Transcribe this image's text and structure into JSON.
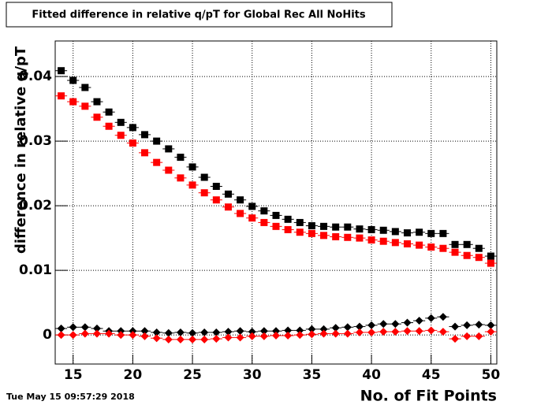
{
  "chart_data": {
    "type": "scatter",
    "title": "Fitted difference in relative q/pT  for Global Rec All NoHits",
    "x_label": "No. of Fit Points",
    "y_label": "difference in relative q/pT",
    "timestamp": "Tue May 15 09:57:29 2018",
    "x": [
      14,
      15,
      16,
      17,
      18,
      19,
      20,
      21,
      22,
      23,
      24,
      25,
      26,
      27,
      28,
      29,
      30,
      31,
      32,
      33,
      34,
      35,
      36,
      37,
      38,
      39,
      40,
      41,
      42,
      43,
      44,
      45,
      46,
      47,
      48,
      49,
      50
    ],
    "series": [
      {
        "color": "#000000",
        "marker": "square",
        "values": [
          0.0409,
          0.0394,
          0.0383,
          0.0361,
          0.0345,
          0.0329,
          0.0321,
          0.031,
          0.03,
          0.0288,
          0.0275,
          0.026,
          0.0244,
          0.023,
          0.0218,
          0.0209,
          0.0199,
          0.0192,
          0.0185,
          0.0179,
          0.0174,
          0.0169,
          0.0168,
          0.0167,
          0.0167,
          0.0164,
          0.0163,
          0.0162,
          0.016,
          0.0158,
          0.0159,
          0.0157,
          0.0157,
          0.014,
          0.014,
          0.0134,
          0.0122
        ]
      },
      {
        "color": "#ff0000",
        "marker": "square",
        "values": [
          0.037,
          0.0361,
          0.0354,
          0.0337,
          0.0323,
          0.0309,
          0.0297,
          0.0282,
          0.0267,
          0.0255,
          0.0243,
          0.0232,
          0.022,
          0.0209,
          0.0198,
          0.0188,
          0.0181,
          0.0174,
          0.0168,
          0.0163,
          0.0159,
          0.0157,
          0.0154,
          0.0152,
          0.0151,
          0.015,
          0.0147,
          0.0145,
          0.0143,
          0.0141,
          0.0139,
          0.0136,
          0.0134,
          0.0128,
          0.0123,
          0.012,
          0.0111
        ]
      },
      {
        "color": "#000000",
        "marker": "diamond",
        "values": [
          0.001,
          0.0012,
          0.0012,
          0.001,
          0.0006,
          0.0006,
          0.0006,
          0.0006,
          0.0004,
          0.0003,
          0.0004,
          0.0003,
          0.0004,
          0.0004,
          0.0005,
          0.0006,
          0.0005,
          0.0006,
          0.0006,
          0.0007,
          0.0007,
          0.0009,
          0.0009,
          0.0011,
          0.0012,
          0.0013,
          0.0015,
          0.0017,
          0.0017,
          0.0019,
          0.0022,
          0.0026,
          0.0028,
          0.0013,
          0.0015,
          0.0016,
          0.0015
        ]
      },
      {
        "color": "#ff0000",
        "marker": "diamond",
        "values": [
          0,
          0,
          0.0002,
          0.0002,
          0.0002,
          0,
          0,
          -0.0002,
          -0.0005,
          -0.0007,
          -0.0007,
          -0.0007,
          -0.0007,
          -0.0006,
          -0.0004,
          -0.0004,
          -0.0002,
          -0.0002,
          -0.0001,
          -0.0001,
          0,
          0.0001,
          0.0002,
          0.0002,
          0.0002,
          0.0004,
          0.0004,
          0.0005,
          0.0005,
          0.0006,
          0.0006,
          0.0007,
          0.0005,
          -0.0006,
          -0.0002,
          -0.0002,
          0.0005
        ]
      }
    ],
    "xlim": [
      13.5,
      50.5
    ],
    "xticks": [
      15,
      20,
      25,
      30,
      35,
      40,
      45,
      50
    ],
    "ylim": [
      -0.0045,
      0.0455
    ],
    "yticks": [
      0,
      0.01,
      0.02,
      0.03,
      0.04
    ],
    "grid": true
  }
}
